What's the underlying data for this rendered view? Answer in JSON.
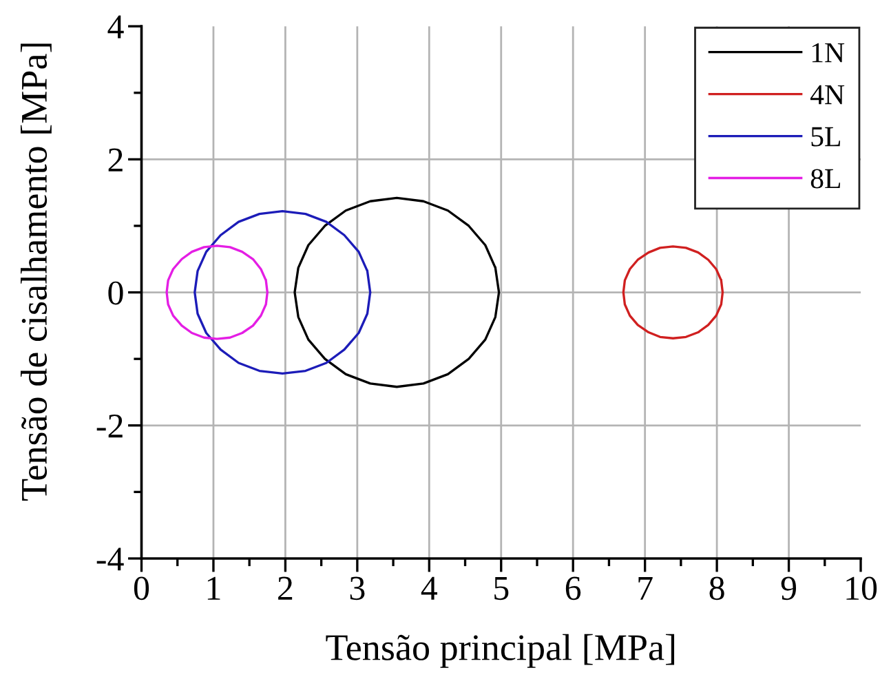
{
  "chart_data": {
    "type": "line",
    "xlabel": "Tensão principal [MPa]",
    "ylabel": "Tensão de cisalhamento [MPa]",
    "xlim": [
      0,
      10
    ],
    "ylim": [
      -4,
      4
    ],
    "xticks": [
      0,
      {
        "value": 0.5,
        "label": null
      },
      1,
      {
        "value": 1.5,
        "label": null
      },
      2,
      {
        "value": 2.5,
        "label": null
      },
      3,
      {
        "value": 3.5,
        "label": null
      },
      4,
      {
        "value": 4.5,
        "label": null
      },
      5,
      {
        "value": 5.5,
        "label": null
      },
      6,
      {
        "value": 6.5,
        "label": null
      },
      7,
      {
        "value": 7.5,
        "label": null
      },
      8,
      {
        "value": 8.5,
        "label": null
      },
      9,
      {
        "value": 9.5,
        "label": null
      },
      10
    ],
    "yticks": [
      -4,
      {
        "value": -3,
        "label": null
      },
      -2,
      {
        "value": -1,
        "label": null
      },
      0,
      {
        "value": 1,
        "label": null
      },
      2,
      {
        "value": 3,
        "label": null
      },
      4
    ],
    "grid": true,
    "legend": "top right",
    "series": [
      {
        "name": "1N",
        "color": "#000000",
        "x": [
          4.97,
          4.92,
          4.78,
          4.55,
          4.26,
          3.92,
          3.55,
          3.18,
          2.84,
          2.55,
          2.32,
          2.18,
          2.13,
          2.18,
          2.32,
          2.55,
          2.84,
          3.18,
          3.55,
          3.92,
          4.26,
          4.55,
          4.78,
          4.92,
          4.97,
          4.92
        ],
        "values": [
          0,
          0.37,
          0.71,
          1.0,
          1.23,
          1.37,
          1.42,
          1.37,
          1.23,
          1.0,
          0.71,
          0.37,
          0,
          -0.37,
          -0.71,
          -1.0,
          -1.23,
          -1.37,
          -1.42,
          -1.37,
          -1.23,
          -1.0,
          -0.71,
          -0.37,
          0,
          0.37
        ]
      },
      {
        "name": "4N",
        "color": "#d02020",
        "x": [
          8.08,
          8.06,
          7.99,
          7.88,
          7.74,
          7.57,
          7.39,
          7.21,
          7.05,
          6.9,
          6.79,
          6.72,
          6.7,
          6.72,
          6.79,
          6.9,
          7.05,
          7.21,
          7.39,
          7.57,
          7.74,
          7.88,
          7.99,
          8.06,
          8.08,
          8.06
        ],
        "values": [
          0,
          0.18,
          0.35,
          0.49,
          0.6,
          0.67,
          0.69,
          0.67,
          0.6,
          0.49,
          0.35,
          0.18,
          0,
          -0.18,
          -0.35,
          -0.49,
          -0.6,
          -0.67,
          -0.69,
          -0.67,
          -0.6,
          -0.49,
          -0.35,
          -0.18,
          0,
          0.18
        ]
      },
      {
        "name": "5L",
        "color": "#1c1cb8",
        "x": [
          3.18,
          3.14,
          3.02,
          2.82,
          2.57,
          2.28,
          1.96,
          1.64,
          1.35,
          1.1,
          0.9,
          0.78,
          0.74,
          0.78,
          0.9,
          1.1,
          1.35,
          1.64,
          1.96,
          2.28,
          2.57,
          2.82,
          3.02,
          3.14,
          3.18,
          3.14
        ],
        "values": [
          0,
          0.32,
          0.61,
          0.86,
          1.06,
          1.18,
          1.22,
          1.18,
          1.06,
          0.86,
          0.61,
          0.32,
          0,
          -0.32,
          -0.61,
          -0.86,
          -1.06,
          -1.18,
          -1.22,
          -1.18,
          -1.06,
          -0.86,
          -0.61,
          -0.32,
          0,
          0.32
        ]
      },
      {
        "name": "8L",
        "color": "#e41ee4",
        "x": [
          1.75,
          1.73,
          1.66,
          1.55,
          1.4,
          1.23,
          1.05,
          0.87,
          0.7,
          0.56,
          0.44,
          0.37,
          0.35,
          0.37,
          0.44,
          0.56,
          0.7,
          0.87,
          1.05,
          1.23,
          1.4,
          1.55,
          1.66,
          1.73,
          1.75,
          1.73
        ],
        "values": [
          0,
          0.18,
          0.35,
          0.5,
          0.61,
          0.68,
          0.7,
          0.68,
          0.61,
          0.5,
          0.35,
          0.18,
          0,
          -0.18,
          -0.35,
          -0.5,
          -0.61,
          -0.68,
          -0.7,
          -0.68,
          -0.61,
          -0.5,
          -0.35,
          -0.18,
          0,
          0.18
        ]
      }
    ]
  }
}
